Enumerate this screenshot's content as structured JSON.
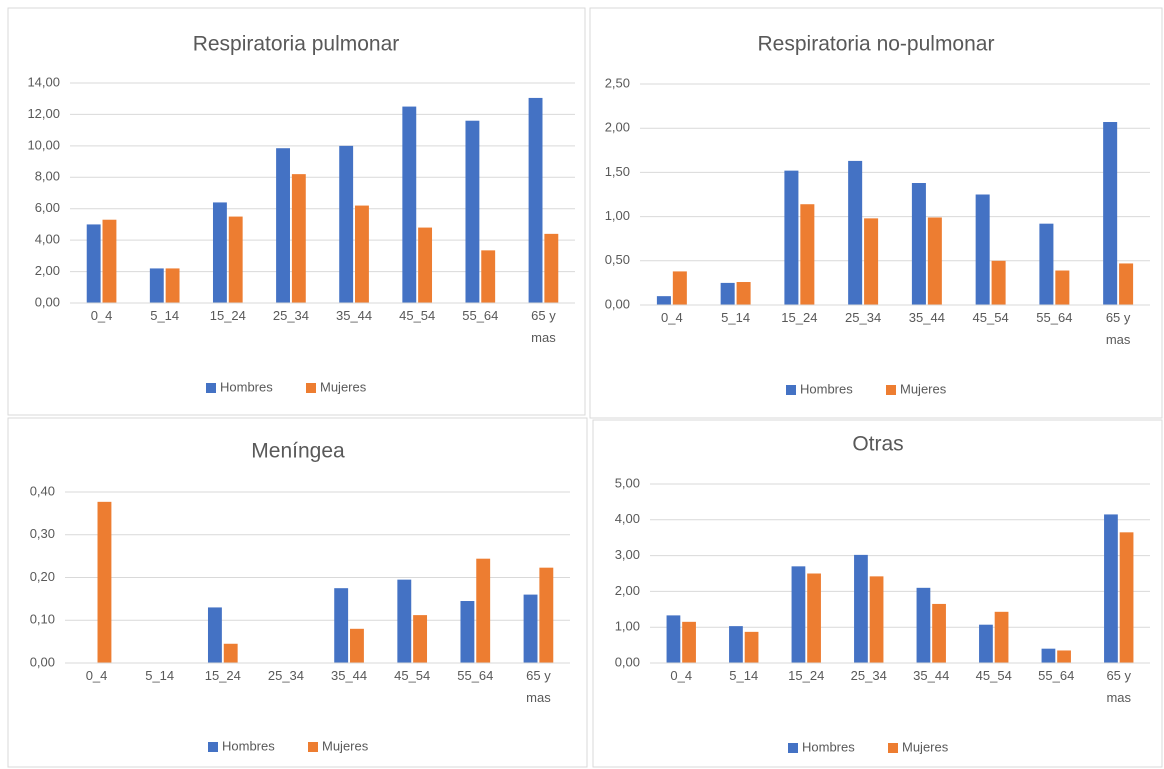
{
  "chart_data": [
    {
      "type": "bar",
      "title": "Respiratoria pulmonar",
      "categories": [
        "0_4",
        "5_14",
        "15_24",
        "25_34",
        "35_44",
        "45_54",
        "55_64",
        "65 y mas"
      ],
      "series": [
        {
          "name": "Hombres",
          "color": "#4472c4",
          "values": [
            5.0,
            2.2,
            6.4,
            9.85,
            10.0,
            12.5,
            11.6,
            13.05
          ]
        },
        {
          "name": "Mujeres",
          "color": "#ed7d31",
          "values": [
            5.3,
            2.2,
            5.5,
            8.2,
            6.2,
            4.8,
            3.35,
            4.4
          ]
        }
      ],
      "ylim": [
        0,
        14
      ],
      "yticks": [
        {
          "value": 0,
          "label": "0,00"
        },
        {
          "value": 2,
          "label": "2,00"
        },
        {
          "value": 4,
          "label": "4,00"
        },
        {
          "value": 6,
          "label": "6,00"
        },
        {
          "value": 8,
          "label": "8,00"
        },
        {
          "value": 10,
          "label": "10,00"
        },
        {
          "value": 12,
          "label": "12,00"
        },
        {
          "value": 14,
          "label": "14,00"
        }
      ],
      "grid": true,
      "legend": "bottom"
    },
    {
      "type": "bar",
      "title": "Respiratoria no-pulmonar",
      "categories": [
        "0_4",
        "5_14",
        "15_24",
        "25_34",
        "35_44",
        "45_54",
        "55_64",
        "65 y mas"
      ],
      "series": [
        {
          "name": "Hombres",
          "color": "#4472c4",
          "values": [
            0.1,
            0.25,
            1.52,
            1.63,
            1.38,
            1.25,
            0.92,
            2.07
          ]
        },
        {
          "name": "Mujeres",
          "color": "#ed7d31",
          "values": [
            0.38,
            0.26,
            1.14,
            0.98,
            0.99,
            0.5,
            0.39,
            0.47
          ]
        }
      ],
      "ylim": [
        0,
        2.5
      ],
      "yticks": [
        {
          "value": 0,
          "label": "0,00"
        },
        {
          "value": 0.5,
          "label": "0,50"
        },
        {
          "value": 1,
          "label": "1,00"
        },
        {
          "value": 1.5,
          "label": "1,50"
        },
        {
          "value": 2,
          "label": "2,00"
        },
        {
          "value": 2.5,
          "label": "2,50"
        }
      ],
      "grid": true,
      "legend": "bottom"
    },
    {
      "type": "bar",
      "title": "Meníngea",
      "categories": [
        "0_4",
        "5_14",
        "15_24",
        "25_34",
        "35_44",
        "45_54",
        "55_64",
        "65 y mas"
      ],
      "series": [
        {
          "name": "Hombres",
          "color": "#4472c4",
          "values": [
            0,
            0,
            0.13,
            0,
            0.175,
            0.195,
            0.145,
            0.16
          ]
        },
        {
          "name": "Mujeres",
          "color": "#ed7d31",
          "values": [
            0.377,
            0,
            0.045,
            0,
            0.08,
            0.112,
            0.244,
            0.223
          ]
        }
      ],
      "ylim": [
        0,
        0.4
      ],
      "yticks": [
        {
          "value": 0,
          "label": "0,00"
        },
        {
          "value": 0.1,
          "label": "0,10"
        },
        {
          "value": 0.2,
          "label": "0,20"
        },
        {
          "value": 0.3,
          "label": "0,30"
        },
        {
          "value": 0.4,
          "label": "0,40"
        }
      ],
      "grid": true,
      "legend": "bottom"
    },
    {
      "type": "bar",
      "title": "Otras",
      "categories": [
        "0_4",
        "5_14",
        "15_24",
        "25_34",
        "35_44",
        "45_54",
        "55_64",
        "65 y mas"
      ],
      "series": [
        {
          "name": "Hombres",
          "color": "#4472c4",
          "values": [
            1.33,
            1.03,
            2.7,
            3.02,
            2.1,
            1.07,
            0.4,
            4.15
          ]
        },
        {
          "name": "Mujeres",
          "color": "#ed7d31",
          "values": [
            1.15,
            0.87,
            2.5,
            2.42,
            1.65,
            1.43,
            0.35,
            3.65
          ]
        }
      ],
      "ylim": [
        0,
        5
      ],
      "yticks": [
        {
          "value": 0,
          "label": "0,00"
        },
        {
          "value": 1,
          "label": "1,00"
        },
        {
          "value": 2,
          "label": "2,00"
        },
        {
          "value": 3,
          "label": "3,00"
        },
        {
          "value": 4,
          "label": "4,00"
        },
        {
          "value": 5,
          "label": "5,00"
        }
      ],
      "grid": true,
      "legend": "bottom"
    }
  ]
}
